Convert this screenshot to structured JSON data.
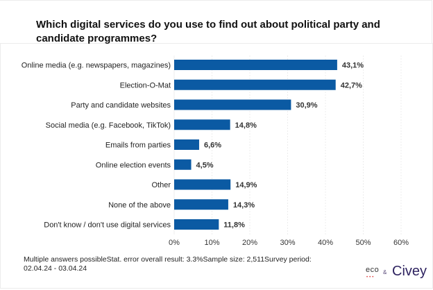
{
  "title": "Which digital services do you use to find out about political party and candidate programmes?",
  "footnote_line1": "Multiple answers possibleStat. error overall result: 3.3%Sample size: 2,511Survey period:",
  "footnote_line2": "02.04.24 - 03.04.24",
  "logos": {
    "eco": "eco",
    "amp": "&",
    "civey": "Civey"
  },
  "colors": {
    "bar": "#0b5aa3",
    "grid": "#ececec"
  },
  "chart_data": {
    "type": "bar",
    "orientation": "horizontal",
    "title": "Which digital services do you use to find out about political party and candidate programmes?",
    "xlabel": "",
    "ylabel": "",
    "xlim": [
      0,
      60
    ],
    "grid": true,
    "categories": [
      "Online media (e.g. newspapers, magazines)",
      "Election-O-Mat",
      "Party and candidate websites",
      "Social media (e.g. Facebook, TikTok)",
      "Emails from parties",
      "Online election events",
      "Other",
      "None of the above",
      "Don't know / don't use digital services"
    ],
    "values": [
      43.1,
      42.7,
      30.9,
      14.8,
      6.6,
      4.5,
      14.9,
      14.3,
      11.8
    ],
    "value_labels": [
      "43,1%",
      "42,7%",
      "30,9%",
      "14,8%",
      "6,6%",
      "4,5%",
      "14,9%",
      "14,3%",
      "11,8%"
    ],
    "ticks": [
      0,
      10,
      20,
      30,
      40,
      50,
      60
    ],
    "tick_labels": [
      "0%",
      "10%",
      "20%",
      "30%",
      "40%",
      "50%",
      "60%"
    ]
  }
}
